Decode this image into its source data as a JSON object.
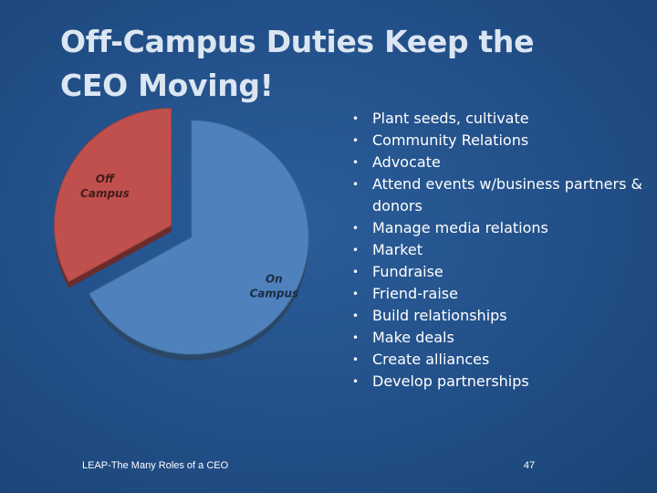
{
  "slide": {
    "title": "Off-Campus Duties Keep the CEO Moving!",
    "footer": "LEAP-The Many Roles of a CEO",
    "page_number": "47"
  },
  "bullets": [
    "Plant seeds, cultivate",
    "Community Relations",
    "Advocate",
    "Attend events w/business partners & donors",
    "Manage media relations",
    "Market",
    "Fundraise",
    "Friend-raise",
    "Build relationships",
    "Make deals",
    "Create alliances",
    "Develop partnerships"
  ],
  "chart_data": {
    "type": "pie",
    "title": "",
    "slices": [
      {
        "label": "Off Campus",
        "value": 33,
        "color": "#c0504d"
      },
      {
        "label": "On Campus",
        "value": 67,
        "color": "#4f81bd"
      }
    ],
    "exploded": "Off Campus"
  }
}
